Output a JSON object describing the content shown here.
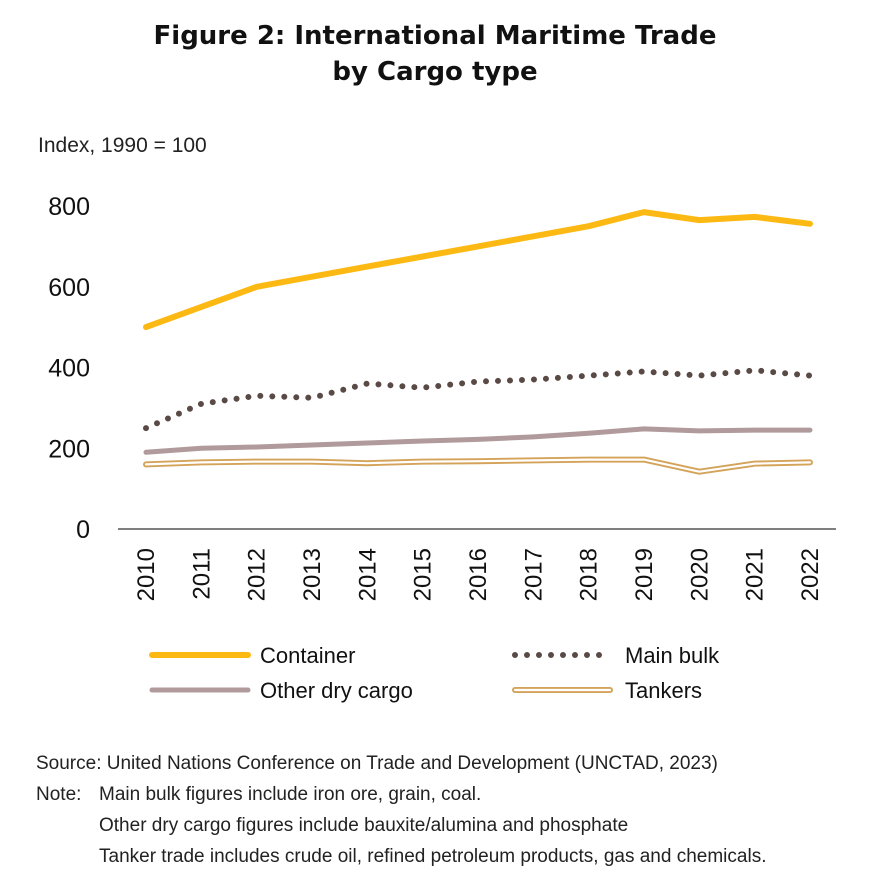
{
  "figure": {
    "title_line1": "Figure 2:  International Maritime Trade",
    "title_line2": "by Cargo type"
  },
  "chart_data": {
    "type": "line",
    "ylabel": "Index, 1990 = 100",
    "xlabel": "",
    "ylim": [
      0,
      800
    ],
    "yticks": [
      "0",
      "200",
      "400",
      "600",
      "800"
    ],
    "categories": [
      "2010",
      "2011",
      "2012",
      "2013",
      "2014",
      "2015",
      "2016",
      "2017",
      "2018",
      "2019",
      "2020",
      "2021",
      "2022"
    ],
    "legend_position": "bottom",
    "grid": false,
    "series": [
      {
        "name": "Container",
        "color": "#FDB913",
        "style": "solid-thick",
        "values": [
          500,
          550,
          600,
          625,
          650,
          675,
          700,
          725,
          750,
          785,
          765,
          773,
          756
        ]
      },
      {
        "name": "Main bulk",
        "color": "#5a4a45",
        "style": "dotted",
        "values": [
          250,
          310,
          330,
          325,
          360,
          350,
          365,
          370,
          380,
          390,
          380,
          393,
          380
        ]
      },
      {
        "name": "Other dry cargo",
        "color": "#b09a9b",
        "style": "solid",
        "values": [
          190,
          200,
          203,
          208,
          213,
          218,
          222,
          228,
          237,
          248,
          243,
          245,
          245
        ]
      },
      {
        "name": "Tankers",
        "color": "#d4a35a",
        "style": "double",
        "values": [
          160,
          165,
          167,
          167,
          163,
          167,
          168,
          170,
          172,
          172,
          142,
          162,
          165
        ]
      }
    ]
  },
  "notes": {
    "source": "Source: United Nations Conference on Trade and Development (UNCTAD, 2023)",
    "note_label": "Note:",
    "note1": "Main bulk figures include iron ore, grain, coal.",
    "note2": "Other dry cargo figures include bauxite/alumina and phosphate",
    "note3": "Tanker trade includes crude oil, refined petroleum products, gas and chemicals."
  }
}
